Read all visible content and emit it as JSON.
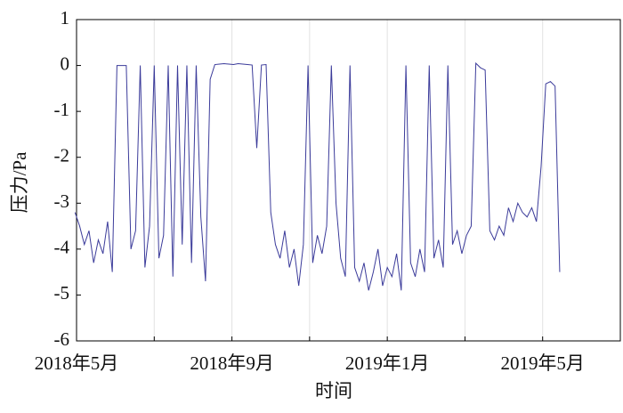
{
  "chart_data": {
    "type": "line",
    "x_label": "时间",
    "y_label": "压力/Pa",
    "x": [
      2018.33,
      2018.34,
      2018.35,
      2018.36,
      2018.37,
      2018.38,
      2018.39,
      2018.4,
      2018.41,
      2018.42,
      2018.43,
      2018.44,
      2018.45,
      2018.46,
      2018.47,
      2018.48,
      2018.49,
      2018.5,
      2018.51,
      2018.52,
      2018.53,
      2018.54,
      2018.55,
      2018.56,
      2018.57,
      2018.58,
      2018.59,
      2018.6,
      2018.61,
      2018.62,
      2018.63,
      2018.64,
      2018.65,
      2018.66,
      2018.67,
      2018.68,
      2018.69,
      2018.7,
      2018.71,
      2018.72,
      2018.73,
      2018.74,
      2018.75,
      2018.76,
      2018.77,
      2018.78,
      2018.79,
      2018.8,
      2018.81,
      2018.82,
      2018.83,
      2018.84,
      2018.85,
      2018.86,
      2018.87,
      2018.88,
      2018.89,
      2018.9,
      2018.91,
      2018.92,
      2018.93,
      2018.94,
      2018.95,
      2018.96,
      2018.97,
      2018.98,
      2018.99,
      2019.0,
      2019.01,
      2019.02,
      2019.03,
      2019.04,
      2019.05,
      2019.06,
      2019.07,
      2019.08,
      2019.09,
      2019.1,
      2019.11,
      2019.12,
      2019.13,
      2019.14,
      2019.15,
      2019.16,
      2019.17,
      2019.18,
      2019.19,
      2019.2,
      2019.21,
      2019.22,
      2019.23,
      2019.24,
      2019.25,
      2019.26,
      2019.27,
      2019.28,
      2019.29,
      2019.3,
      2019.31,
      2019.32,
      2019.33,
      2019.34,
      2019.35,
      2019.36,
      2019.37
    ],
    "values": [
      -3.2,
      -3.5,
      -3.9,
      -3.6,
      -4.3,
      -3.8,
      -4.1,
      -3.4,
      -4.5,
      0,
      0,
      0,
      -4.0,
      -3.6,
      0,
      -4.4,
      -3.5,
      0,
      -4.2,
      -3.7,
      0,
      -4.6,
      0,
      -3.9,
      0,
      -4.3,
      0,
      -3.3,
      -4.7,
      -0.3,
      0.02,
      0.03,
      0.04,
      0.03,
      0.02,
      0.04,
      0.03,
      0.02,
      0.01,
      -1.8,
      0.01,
      0.02,
      -3.2,
      -3.9,
      -4.2,
      -3.6,
      -4.4,
      -4.0,
      -4.8,
      -3.9,
      0,
      -4.3,
      -3.7,
      -4.1,
      -3.5,
      0,
      -3.0,
      -4.2,
      -4.6,
      0,
      -4.4,
      -4.7,
      -4.3,
      -4.9,
      -4.5,
      -4.0,
      -4.8,
      -4.4,
      -4.6,
      -4.1,
      -4.9,
      0,
      -4.3,
      -4.6,
      -4.0,
      -4.5,
      0,
      -4.2,
      -3.8,
      -4.4,
      0,
      -3.9,
      -3.6,
      -4.1,
      -3.7,
      -3.5,
      0.05,
      -0.05,
      -0.1,
      -3.6,
      -3.8,
      -3.5,
      -3.7,
      -3.1,
      -3.4,
      -3.0,
      -3.2,
      -3.3,
      -3.1,
      -3.4,
      -2.2,
      -0.4,
      -0.35,
      -0.45,
      -4.5
    ],
    "color": "#3b3b9a",
    "xlim": [
      2018.3333,
      2019.5
    ],
    "xticks": [
      {
        "value": 2018.3333,
        "label": "2018年5月"
      },
      {
        "value": 2018.5,
        "label": null
      },
      {
        "value": 2018.6667,
        "label": "2018年9月"
      },
      {
        "value": 2018.8333,
        "label": null
      },
      {
        "value": 2019.0,
        "label": "2019年1月"
      },
      {
        "value": 2019.1667,
        "label": null
      },
      {
        "value": 2019.3333,
        "label": "2019年5月"
      }
    ],
    "ylim": [
      -6,
      1
    ],
    "yticks": [
      -6,
      -5,
      -4,
      -3,
      -2,
      -1,
      0,
      1
    ],
    "grid": true
  }
}
